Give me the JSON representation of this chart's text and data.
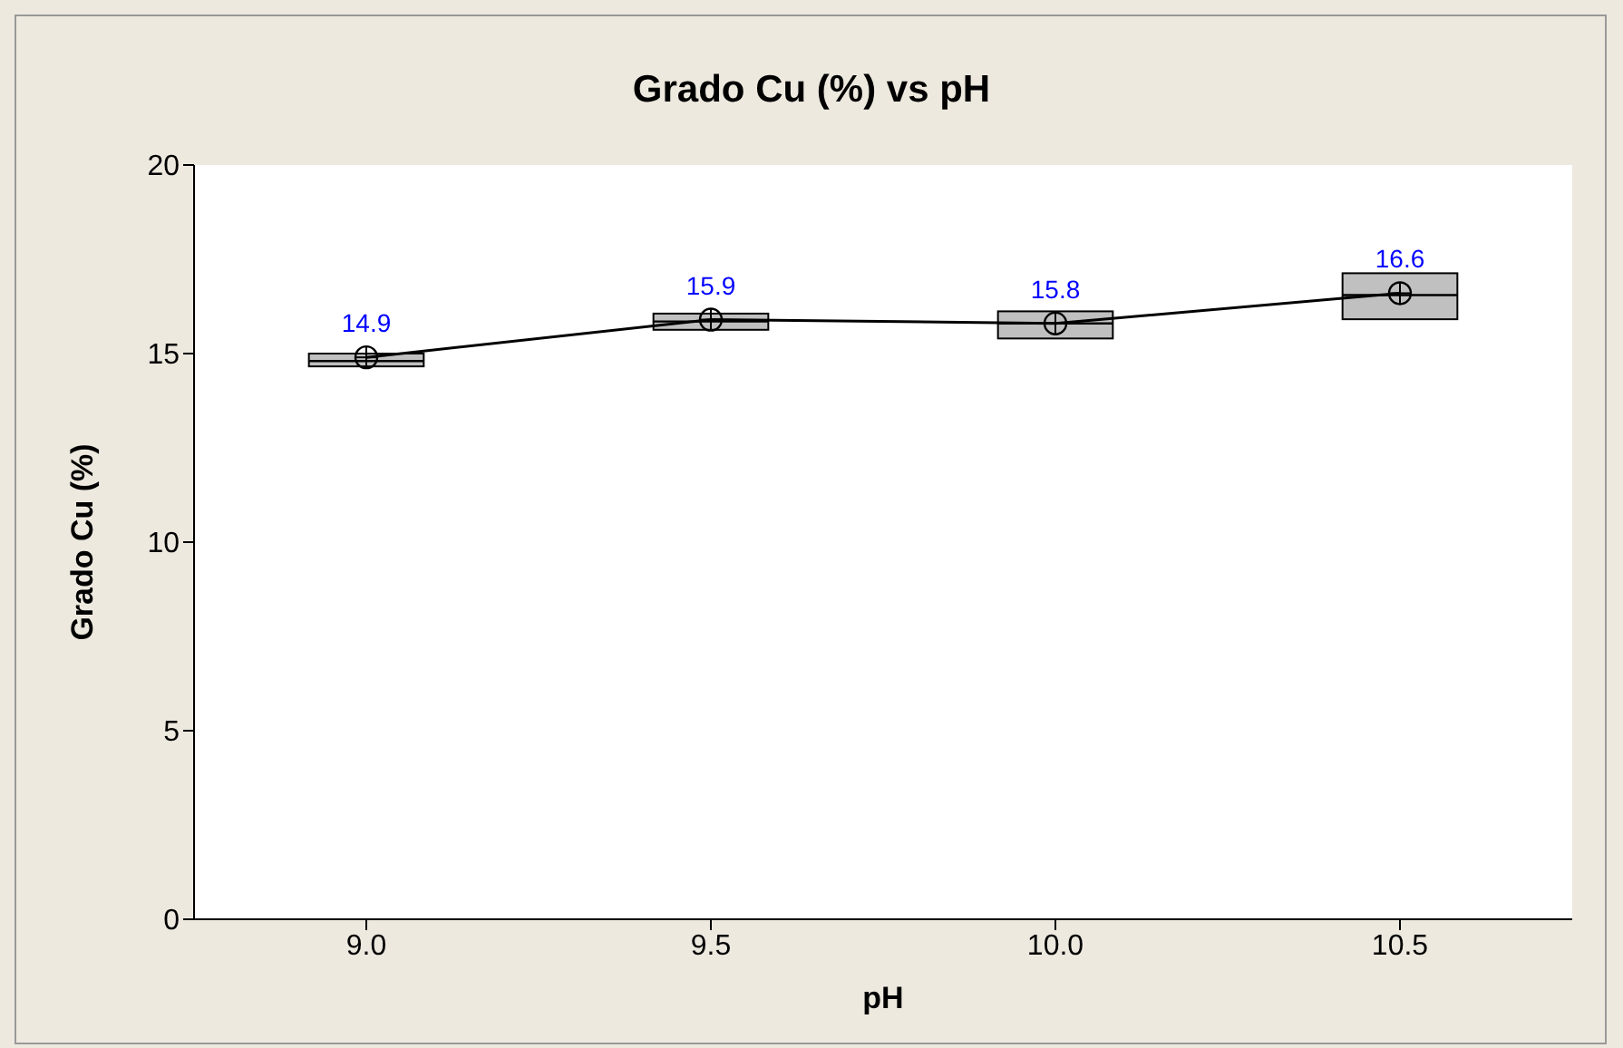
{
  "chart_data": {
    "type": "box",
    "title": "Grado Cu (%) vs pH",
    "xlabel": "pH",
    "ylabel": "Grado Cu (%)",
    "categories": [
      "9.0",
      "9.5",
      "10.0",
      "10.5"
    ],
    "boxes": [
      {
        "low": 14.66,
        "q1": 14.66,
        "median": 14.8,
        "q3": 15.0,
        "high": 15.0
      },
      {
        "low": 15.63,
        "q1": 15.63,
        "median": 15.85,
        "q3": 16.06,
        "high": 16.06
      },
      {
        "low": 15.4,
        "q1": 15.4,
        "median": 15.8,
        "q3": 16.12,
        "high": 16.12
      },
      {
        "low": 15.91,
        "q1": 15.91,
        "median": 16.55,
        "q3": 17.13,
        "high": 17.13
      }
    ],
    "color": "#c0c0c0",
    "series": [
      {
        "type": "line",
        "color": "#000000",
        "values": [
          14.9,
          15.9,
          15.8,
          16.6
        ]
      }
    ],
    "data_labels": true,
    "marker": "circle",
    "ylim": [
      0,
      20
    ],
    "yticks": [
      0,
      5,
      10,
      15,
      20
    ],
    "grid": false
  }
}
